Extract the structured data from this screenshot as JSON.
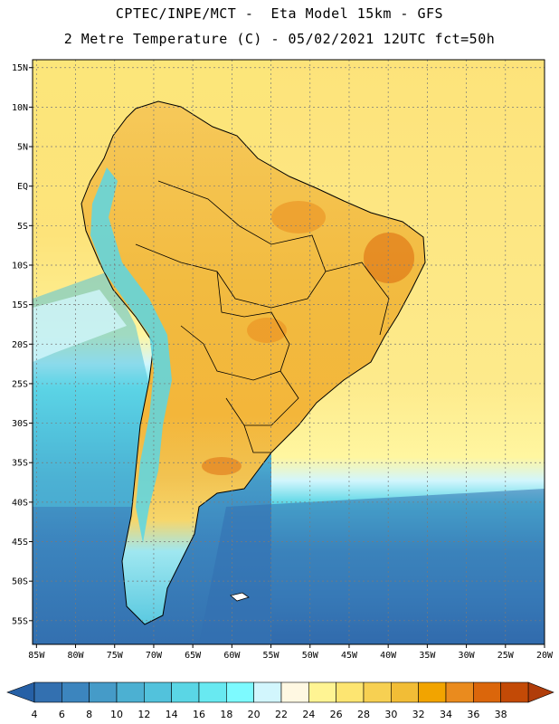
{
  "title_line1": "CPTEC/INPE/MCT -  Eta Model 15km - GFS",
  "title_line2": "2 Metre Temperature (C) - 05/02/2021 12UTC fct=50h",
  "map": {
    "lon_range": [
      -85.5,
      -20
    ],
    "lat_range": [
      -58,
      16
    ],
    "lat_ticks": [
      {
        "lat": 15,
        "label": "15N"
      },
      {
        "lat": 10,
        "label": "10N"
      },
      {
        "lat": 5,
        "label": "5N"
      },
      {
        "lat": 0,
        "label": "EQ"
      },
      {
        "lat": -5,
        "label": "5S"
      },
      {
        "lat": -10,
        "label": "10S"
      },
      {
        "lat": -15,
        "label": "15S"
      },
      {
        "lat": -20,
        "label": "20S"
      },
      {
        "lat": -25,
        "label": "25S"
      },
      {
        "lat": -30,
        "label": "30S"
      },
      {
        "lat": -35,
        "label": "35S"
      },
      {
        "lat": -40,
        "label": "40S"
      },
      {
        "lat": -45,
        "label": "45S"
      },
      {
        "lat": -50,
        "label": "50S"
      },
      {
        "lat": -55,
        "label": "55S"
      }
    ],
    "lon_ticks": [
      {
        "lon": -85,
        "label": "85W"
      },
      {
        "lon": -80,
        "label": "80W"
      },
      {
        "lon": -75,
        "label": "75W"
      },
      {
        "lon": -70,
        "label": "70W"
      },
      {
        "lon": -65,
        "label": "65W"
      },
      {
        "lon": -60,
        "label": "60W"
      },
      {
        "lon": -55,
        "label": "55W"
      },
      {
        "lon": -50,
        "label": "50W"
      },
      {
        "lon": -45,
        "label": "45W"
      },
      {
        "lon": -40,
        "label": "40W"
      },
      {
        "lon": -35,
        "label": "35W"
      },
      {
        "lon": -30,
        "label": "30W"
      },
      {
        "lon": -25,
        "label": "25W"
      },
      {
        "lon": -20,
        "label": "20W"
      }
    ],
    "grid": true
  },
  "legend": {
    "left_arrow_color": "#2660a6",
    "right_arrow_color": "#b03d0a",
    "bins": [
      {
        "label": "4",
        "color": "#3370b0"
      },
      {
        "label": "6",
        "color": "#3c85be"
      },
      {
        "label": "8",
        "color": "#459bc8"
      },
      {
        "label": "10",
        "color": "#4cb0d2"
      },
      {
        "label": "12",
        "color": "#52c2dc"
      },
      {
        "label": "14",
        "color": "#5ad6e5"
      },
      {
        "label": "16",
        "color": "#68e9f1"
      },
      {
        "label": "18",
        "color": "#7dfaff"
      },
      {
        "label": "20",
        "color": "#d2f6fd"
      },
      {
        "label": "22",
        "color": "#fff8e2"
      },
      {
        "label": "24",
        "color": "#fff493"
      },
      {
        "label": "26",
        "color": "#fde571"
      },
      {
        "label": "28",
        "color": "#f7d052"
      },
      {
        "label": "30",
        "color": "#f2bd36"
      },
      {
        "label": "32",
        "color": "#f2a400"
      },
      {
        "label": "34",
        "color": "#ea8b1e"
      },
      {
        "label": "36",
        "color": "#db660b"
      },
      {
        "label": "38",
        "color": "#c34a06"
      }
    ]
  }
}
